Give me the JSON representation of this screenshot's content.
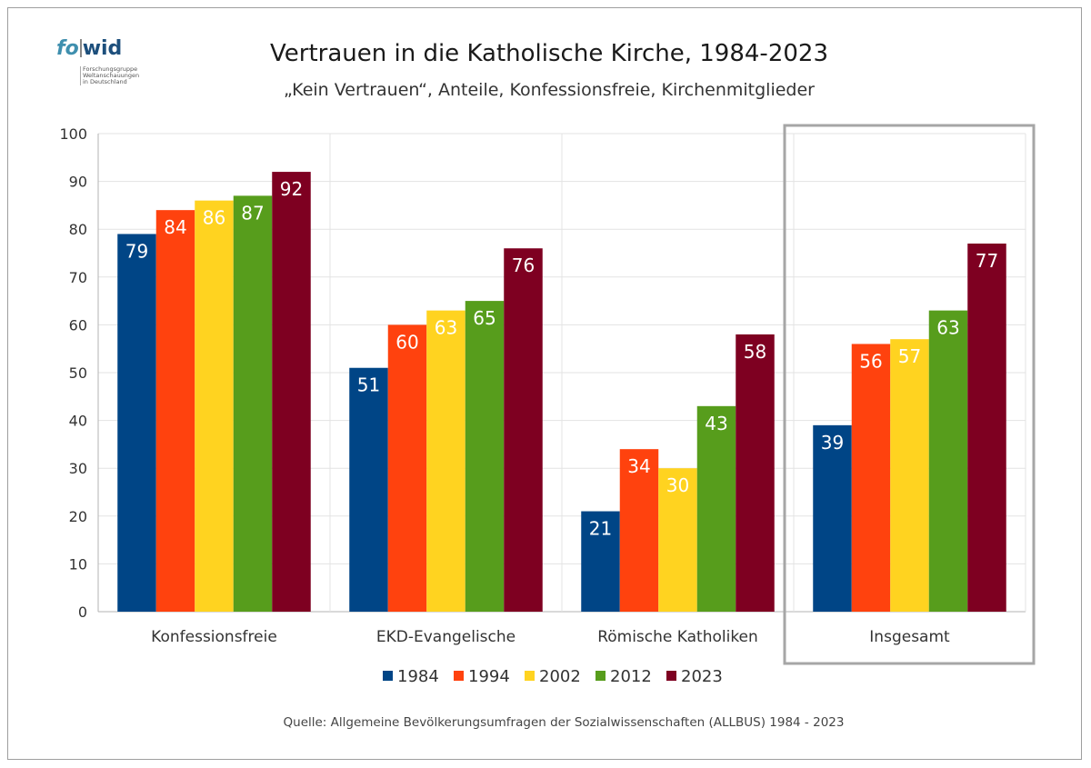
{
  "logo": {
    "word_part1": "fo",
    "word_part2": "wid",
    "subtitle_lines": [
      "Forschungsgruppe",
      "Weltanschauungen",
      "in Deutschland"
    ]
  },
  "header": {
    "title": "Vertrauen in die Katholische Kirche, 1984-2023",
    "subtitle": "„Kein Vertrauen“, Anteile, Konfessionsfreie, Kirchenmitglieder"
  },
  "footer": {
    "source": "Quelle: Allgemeine Bevölkerungsumfragen der Sozialwissenschaften (ALLBUS) 1984 - 2023"
  },
  "chart_data": {
    "type": "bar",
    "title": "Vertrauen in die Katholische Kirche, 1984-2023",
    "subtitle": "„Kein Vertrauen“, Anteile, Konfessionsfreie, Kirchenmitglieder",
    "xlabel": "",
    "ylabel": "",
    "ylim": [
      0,
      100
    ],
    "yticks": [
      0,
      10,
      20,
      30,
      40,
      50,
      60,
      70,
      80,
      90,
      100
    ],
    "grid": true,
    "legend_position": "bottom",
    "categories": [
      "Konfessionsfreie",
      "EKD-Evangelische",
      "Römische Katholiken",
      "Insgesamt"
    ],
    "highlighted_category": "Insgesamt",
    "series": [
      {
        "name": "1984",
        "color": "#004586",
        "values": [
          79,
          51,
          21,
          39
        ]
      },
      {
        "name": "1994",
        "color": "#ff420e",
        "values": [
          84,
          60,
          34,
          56
        ]
      },
      {
        "name": "2002",
        "color": "#ffd320",
        "values": [
          86,
          63,
          30,
          57
        ]
      },
      {
        "name": "2012",
        "color": "#579d1c",
        "values": [
          87,
          65,
          43,
          63
        ]
      },
      {
        "name": "2023",
        "color": "#7e0021",
        "values": [
          92,
          76,
          58,
          77
        ]
      }
    ],
    "data_labels": true,
    "data_label_color": "#ffffff"
  }
}
